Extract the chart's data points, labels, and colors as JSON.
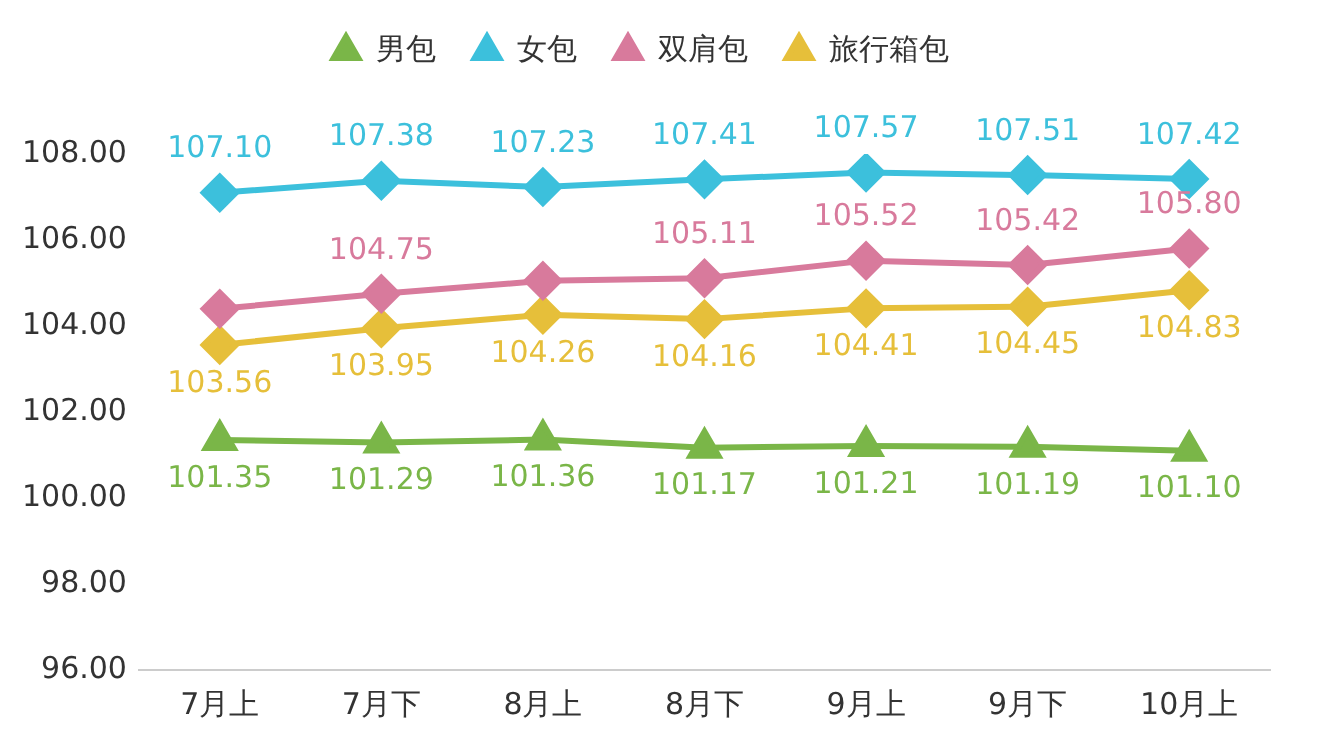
{
  "chart_data": {
    "type": "line",
    "categories": [
      "7月上",
      "7月下",
      "8月上",
      "8月下",
      "9月上",
      "9月下",
      "10月上"
    ],
    "series": [
      {
        "name": "男包",
        "color": "#7ab648",
        "marker": "triangle",
        "values": [
          101.35,
          101.29,
          101.36,
          101.17,
          101.21,
          101.19,
          101.1
        ],
        "value_labels": [
          "101.35",
          "101.29",
          "101.36",
          "101.17",
          "101.21",
          "101.19",
          "101.10"
        ]
      },
      {
        "name": "女包",
        "color": "#3cc0dc",
        "marker": "diamond",
        "values": [
          107.1,
          107.38,
          107.23,
          107.41,
          107.57,
          107.51,
          107.42
        ],
        "value_labels": [
          "107.10",
          "107.38",
          "107.23",
          "107.41",
          "107.57",
          "107.51",
          "107.42"
        ]
      },
      {
        "name": "双肩包",
        "color": "#d87a9c",
        "marker": "diamond",
        "values": [
          104.4,
          104.75,
          105.05,
          105.11,
          105.52,
          105.42,
          105.8
        ],
        "value_labels": [
          null,
          "104.75",
          null,
          "105.11",
          "105.52",
          "105.42",
          "105.80"
        ]
      },
      {
        "name": "旅行箱包",
        "color": "#e6bf3a",
        "marker": "diamond",
        "values": [
          103.56,
          103.95,
          104.26,
          104.16,
          104.41,
          104.45,
          104.83
        ],
        "value_labels": [
          "103.56",
          "103.95",
          "104.26",
          "104.16",
          "104.41",
          "104.45",
          "104.83"
        ]
      }
    ],
    "ylim": [
      96,
      108
    ],
    "yticks": [
      {
        "value": 96,
        "label": "96.00"
      },
      {
        "value": 98,
        "label": "98.00"
      },
      {
        "value": 100,
        "label": "100.00"
      },
      {
        "value": 102,
        "label": "102.00"
      },
      {
        "value": 104,
        "label": "104.00"
      },
      {
        "value": 106,
        "label": "106.00"
      },
      {
        "value": 108,
        "label": "108.00"
      }
    ],
    "grid": false,
    "legend": "top",
    "line_style": "solid"
  }
}
